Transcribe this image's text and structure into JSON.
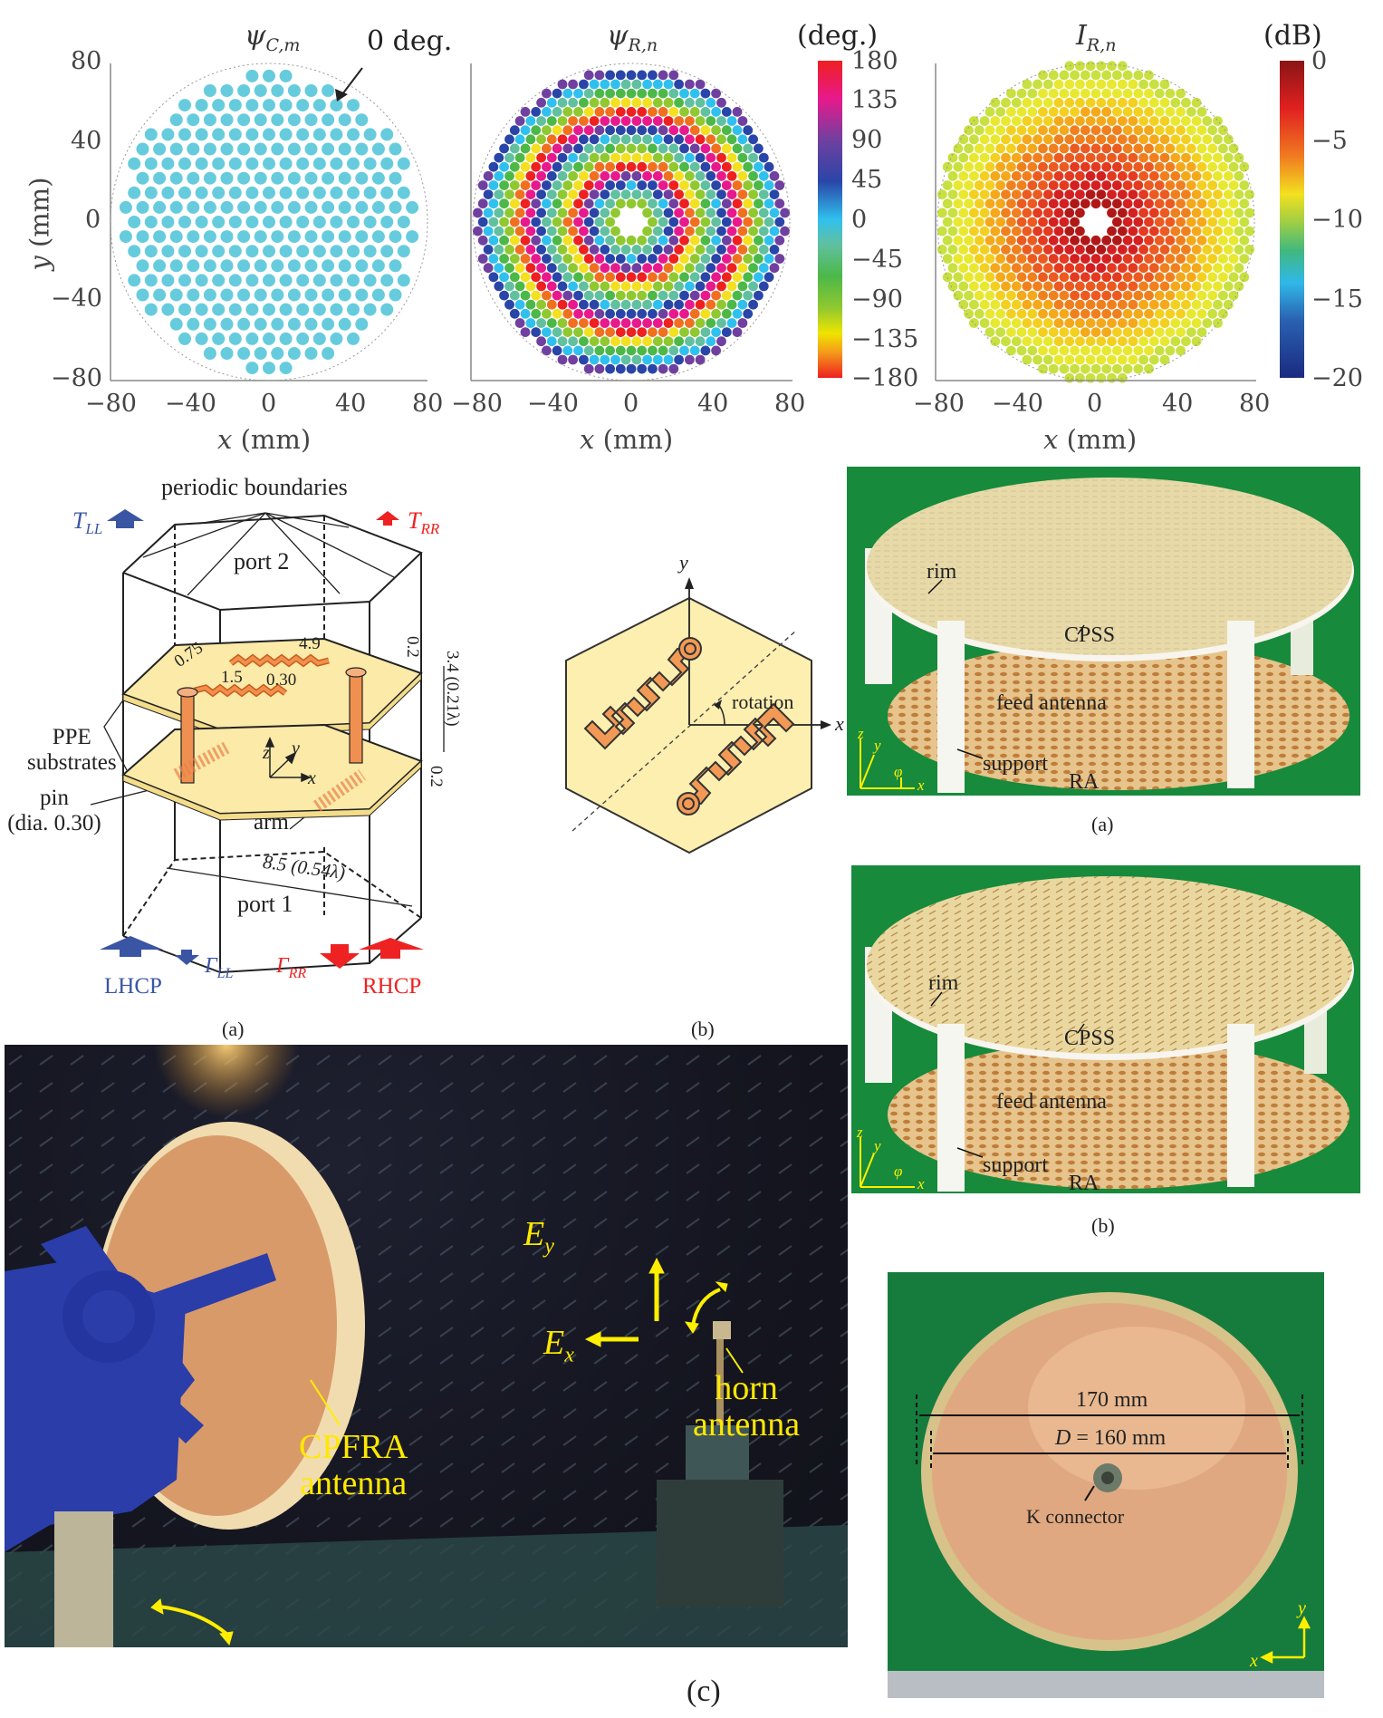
{
  "figure": {
    "plots": [
      {
        "title": "ψ",
        "title_sub": "C,m",
        "annotation": "0 deg.",
        "y_label_var": "y",
        "y_label_unit": "(mm)",
        "x_label_var": "x",
        "x_label_unit": "(mm)",
        "x_ticks": [
          "−80",
          "−40",
          "0",
          "40",
          "80"
        ],
        "y_ticks": [
          "80",
          "40",
          "0",
          "−40",
          "−80"
        ],
        "dot_color": "#66ccdd"
      },
      {
        "title": "ψ",
        "title_sub": "R,n",
        "x_label_var": "x",
        "x_label_unit": "(mm)",
        "x_ticks": [
          "−80",
          "−40",
          "0",
          "40",
          "80"
        ],
        "colorbar_unit": "(deg.)",
        "colorbar_ticks": [
          "180",
          "135",
          "90",
          "45",
          "0",
          "−45",
          "−90",
          "−135",
          "−180"
        ]
      },
      {
        "title": "I",
        "title_sub": "R,n",
        "x_label_var": "x",
        "x_label_unit": "(mm)",
        "x_ticks": [
          "−80",
          "−40",
          "0",
          "40",
          "80"
        ],
        "colorbar_unit": "(dB)",
        "colorbar_ticks": [
          "0",
          "−5",
          "−10",
          "−15",
          "−20"
        ]
      }
    ],
    "unit_cell_3d": {
      "periodic_boundaries": "periodic boundaries",
      "port2": "port 2",
      "port1": "port 1",
      "t_ll": "T",
      "t_ll_sub": "LL",
      "t_rr": "T",
      "t_rr_sub": "RR",
      "gamma_ll": "Γ",
      "gamma_ll_sub": "LL",
      "gamma_rr": "Γ",
      "gamma_rr_sub": "RR",
      "lhcp": "LHCP",
      "rhcp": "RHCP",
      "ppe_line1": "PPE",
      "ppe_line2": "substrates",
      "pin_line1": "pin",
      "pin_line2": "(dia. 0.30)",
      "arm": "arm",
      "dim_075": "0.75",
      "dim_49": "4.9",
      "dim_15": "1.5",
      "dim_030": "0.30",
      "dim_02_top": "0.2",
      "dim_34": "3.4 (0.21λ)",
      "dim_02_bot": "0.2",
      "dim_85": "8.5 (0.54λ)",
      "axis_x": "x",
      "axis_y": "y",
      "axis_z": "z",
      "caption": "(a)",
      "lhcp_color": "#3a55a4",
      "rhcp_color": "#ee2222"
    },
    "unit_cell_top": {
      "axis_x": "x",
      "axis_y": "y",
      "rotation": "rotation",
      "caption": "(b)"
    },
    "photo_a": {
      "rim": "rim",
      "cpss": "CPSS",
      "feed": "feed antenna",
      "support": "support",
      "ra": "RA",
      "axis_x": "x",
      "axis_y": "y",
      "axis_z": "z",
      "axis_phi": "φ",
      "caption": "(a)"
    },
    "photo_b": {
      "rim": "rim",
      "cpss": "CPSS",
      "feed": "feed antenna",
      "support": "support",
      "ra": "RA",
      "axis_x": "x",
      "axis_y": "y",
      "axis_z": "z",
      "axis_phi": "φ",
      "caption": "(b)"
    },
    "chamber_photo": {
      "ey": "E",
      "ey_sub": "y",
      "ex": "E",
      "ex_sub": "x",
      "horn_line1": "horn",
      "horn_line2": "antenna",
      "cpfra_line1": "CPFRA",
      "cpfra_line2": "antenna",
      "caption": "(c)"
    },
    "disk_photo": {
      "dim_outer": "170 mm",
      "dim_inner_var": "D",
      "dim_inner": " = 160 mm",
      "connector": "K connector",
      "axis_x": "x",
      "axis_y": "y"
    }
  }
}
